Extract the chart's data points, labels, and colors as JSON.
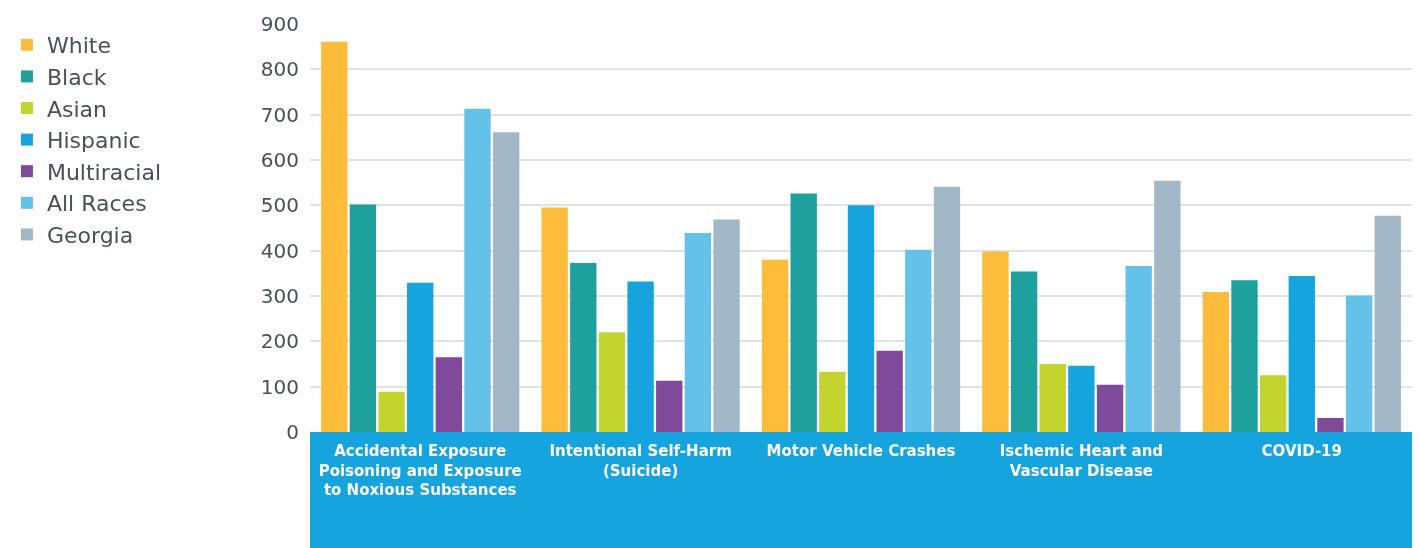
{
  "chart_data": {
    "type": "bar",
    "categories": [
      "Accidental Exposure Poisoning and Exposure to Noxious Substances",
      "Intentional Self-Harm (Suicide)",
      "Motor Vehicle Crashes",
      "Ischemic Heart and Vascular Disease",
      "COVID-19"
    ],
    "series": [
      {
        "name": "White",
        "color": "#fdbc3a",
        "values": [
          861,
          495,
          380,
          398,
          309
        ]
      },
      {
        "name": "Black",
        "color": "#1ea19c",
        "values": [
          502,
          373,
          526,
          354,
          335
        ]
      },
      {
        "name": "Asian",
        "color": "#c3d42f",
        "values": [
          89,
          220,
          133,
          150,
          125
        ]
      },
      {
        "name": "Hispanic",
        "color": "#16a4de",
        "values": [
          329,
          332,
          500,
          146,
          344
        ]
      },
      {
        "name": "Multiracial",
        "color": "#804a9b",
        "values": [
          165,
          113,
          179,
          104,
          31
        ]
      },
      {
        "name": "All Races",
        "color": "#64c2ea",
        "values": [
          713,
          439,
          402,
          366,
          301
        ]
      },
      {
        "name": "Georgia",
        "color": "#a3b8c7",
        "values": [
          661,
          469,
          541,
          554,
          477
        ]
      }
    ],
    "ylim": [
      0,
      900
    ],
    "yticks": [
      0,
      100,
      200,
      300,
      400,
      500,
      600,
      700,
      800,
      900
    ],
    "grid": "y",
    "legend": "left"
  }
}
